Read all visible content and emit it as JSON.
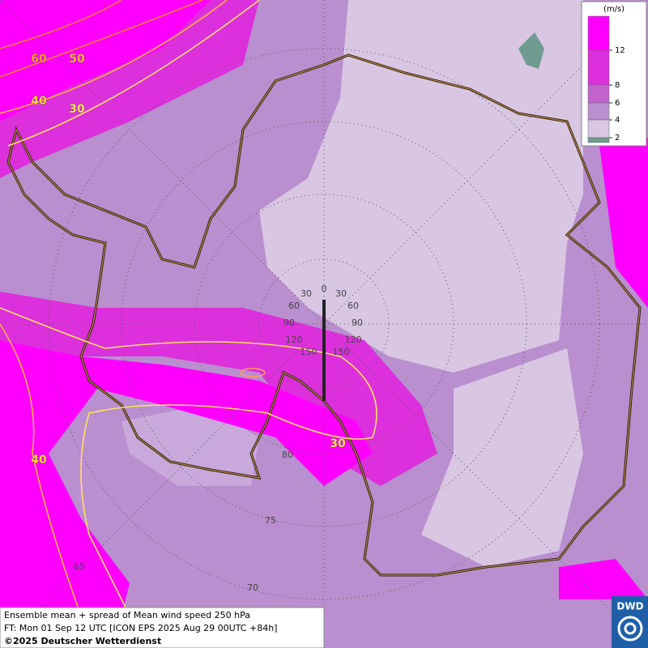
{
  "legend": {
    "unit": "(m/s)",
    "ticks": [
      12,
      8,
      6,
      4,
      2
    ],
    "colors": [
      "#ff00ff",
      "#dc30dc",
      "#c262cc",
      "#b98fcf",
      "#d9c6e3",
      "#6f9b90"
    ]
  },
  "contour_labels": [
    60,
    50,
    40,
    30,
    30,
    40
  ],
  "grid_labels": [
    30,
    0,
    30,
    60,
    60,
    90,
    90,
    120,
    120,
    150,
    150,
    80,
    75,
    70,
    65
  ],
  "footer": {
    "line1": "Ensemble mean + spread of Mean wind speed 250 hPa",
    "line2": "FT: Mon 01 Sep 12 UTC [ICON EPS 2025 Aug 29 00UTC +84h]",
    "line3": "©2025 Deutscher Wetterdienst"
  },
  "logo": "DWD"
}
